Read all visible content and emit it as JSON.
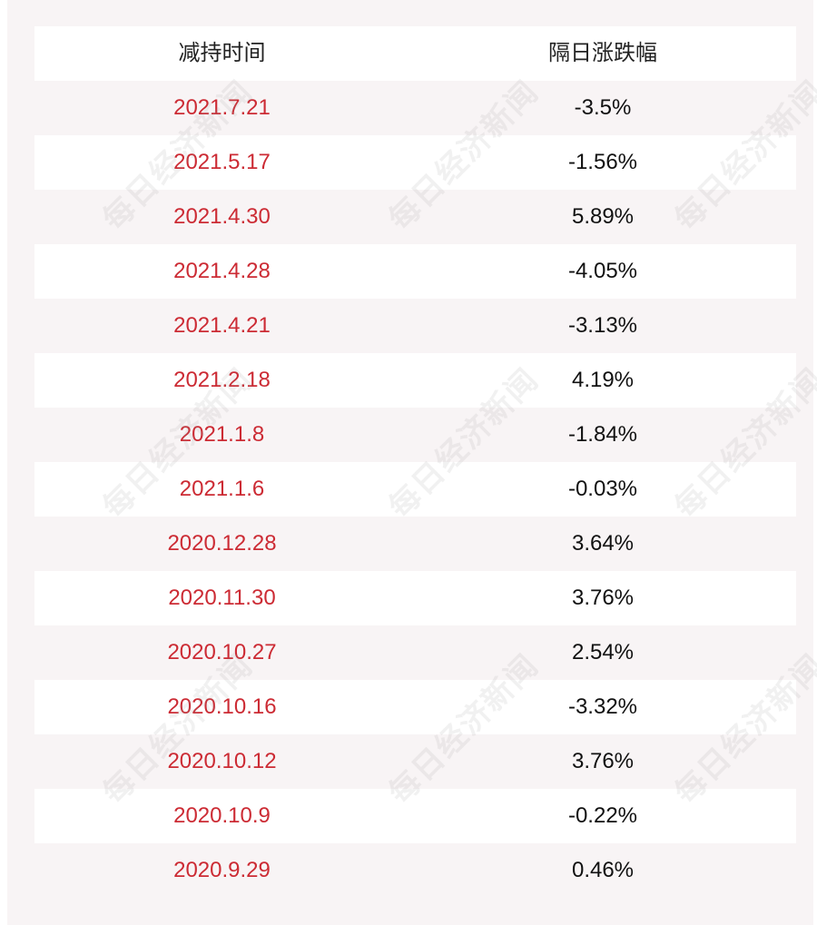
{
  "table": {
    "headers": [
      "减持时间",
      "隔日涨跌幅"
    ],
    "rows": [
      {
        "date": "2021.7.21",
        "change": "-3.5%"
      },
      {
        "date": "2021.5.17",
        "change": "-1.56%"
      },
      {
        "date": "2021.4.30",
        "change": "5.89%"
      },
      {
        "date": "2021.4.28",
        "change": "-4.05%"
      },
      {
        "date": "2021.4.21",
        "change": "-3.13%"
      },
      {
        "date": "2021.2.18",
        "change": "4.19%"
      },
      {
        "date": "2021.1.8",
        "change": "-1.84%"
      },
      {
        "date": "2021.1.6",
        "change": "-0.03%"
      },
      {
        "date": "2020.12.28",
        "change": "3.64%"
      },
      {
        "date": "2020.11.30",
        "change": "3.76%"
      },
      {
        "date": "2020.10.27",
        "change": "2.54%"
      },
      {
        "date": "2020.10.16",
        "change": "-3.32%"
      },
      {
        "date": "2020.10.12",
        "change": "3.76%"
      },
      {
        "date": "2020.10.9",
        "change": "-0.22%"
      },
      {
        "date": "2020.9.29",
        "change": "0.46%"
      }
    ]
  },
  "watermark": {
    "text": "每日经济新闻"
  },
  "colors": {
    "date_text": "#cc2b34",
    "value_text": "#111111",
    "stripe": "#f8f4f5"
  }
}
